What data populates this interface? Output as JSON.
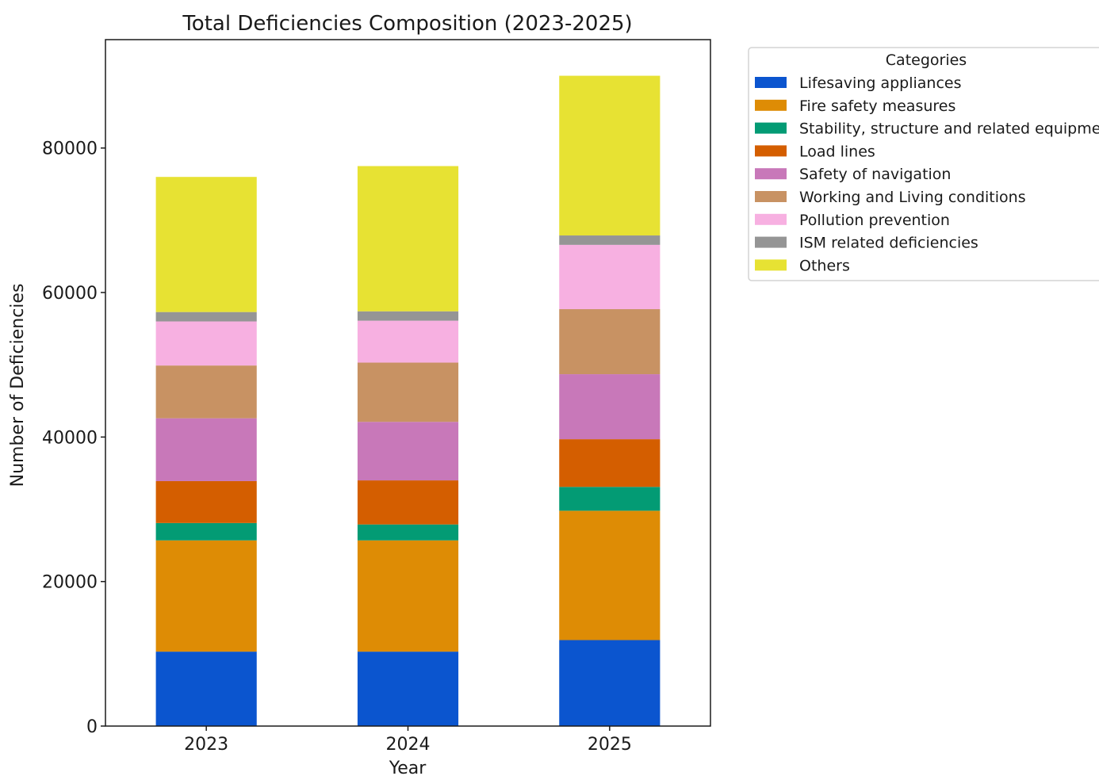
{
  "chart_data": {
    "type": "bar",
    "stacked": true,
    "title": "Total Deficiencies Composition (2023-2025)",
    "xlabel": "Year",
    "ylabel": "Number of Deficiencies",
    "categories": [
      "2023",
      "2024",
      "2025"
    ],
    "ylim": [
      0,
      95000
    ],
    "yticks": [
      0,
      20000,
      40000,
      60000,
      80000
    ],
    "grid": false,
    "legend": {
      "title": "Categories",
      "placement": "outside-top-right"
    },
    "series": [
      {
        "name": "Lifesaving appliances",
        "color": "#0b55cf",
        "values": [
          10300,
          10300,
          11900
        ]
      },
      {
        "name": "Fire safety measures",
        "color": "#de8c05",
        "values": [
          15400,
          15400,
          17900
        ]
      },
      {
        "name": "Stability, structure and related equipment",
        "color": "#039b74",
        "values": [
          2400,
          2200,
          3300
        ]
      },
      {
        "name": "Load lines",
        "color": "#d45e00",
        "values": [
          5800,
          6100,
          6600
        ]
      },
      {
        "name": "Safety of navigation",
        "color": "#c878b9",
        "values": [
          8700,
          8100,
          9000
        ]
      },
      {
        "name": "Working and Living conditions",
        "color": "#c89263",
        "values": [
          7300,
          8200,
          9000
        ]
      },
      {
        "name": "Pollution prevention",
        "color": "#f7b0e1",
        "values": [
          6100,
          5800,
          8900
        ]
      },
      {
        "name": "ISM related deficiencies",
        "color": "#959595",
        "values": [
          1300,
          1300,
          1300
        ]
      },
      {
        "name": "Others",
        "color": "#e7e233",
        "values": [
          18700,
          20100,
          22100
        ]
      }
    ]
  }
}
